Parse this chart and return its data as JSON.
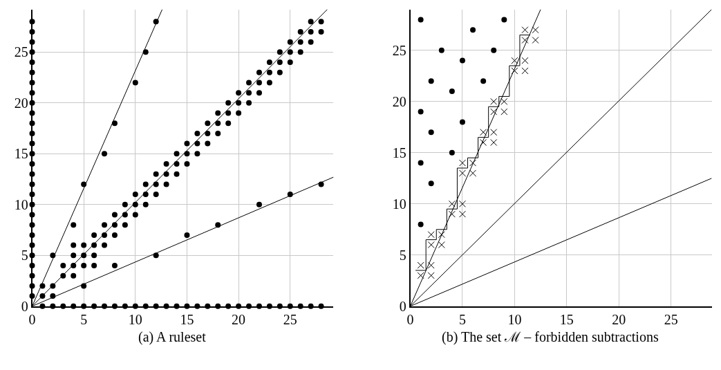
{
  "chart_data": [
    {
      "type": "scatter",
      "title": "(a) A ruleset",
      "xlim": [
        0,
        29.2
      ],
      "ylim": [
        0,
        29.2
      ],
      "xticks": [
        0,
        5,
        10,
        15,
        20,
        25
      ],
      "yticks": [
        0,
        5,
        10,
        15,
        20,
        25
      ],
      "grid": true,
      "series": [
        {
          "type": "scatter",
          "marker": "circle",
          "color": "#000000",
          "x": [
            0,
            0,
            0,
            0,
            0,
            0,
            0,
            0,
            0,
            0,
            0,
            0,
            0,
            0,
            0,
            0,
            0,
            0,
            0,
            0,
            0,
            0,
            0,
            0,
            0,
            0,
            0,
            0,
            1,
            2,
            3,
            4,
            5,
            6,
            7,
            8,
            9,
            10,
            11,
            12,
            13,
            14,
            15,
            16,
            17,
            18,
            19,
            20,
            21,
            22,
            23,
            24,
            25,
            26,
            27,
            28,
            1,
            1,
            2,
            2,
            2,
            3,
            3,
            4,
            4,
            4,
            4,
            4,
            5,
            5,
            5,
            5,
            5,
            6,
            6,
            6,
            6,
            7,
            7,
            7,
            7,
            8,
            8,
            8,
            8,
            8,
            9,
            9,
            9,
            10,
            10,
            10,
            10,
            11,
            11,
            11,
            11,
            12,
            12,
            12,
            12,
            12,
            13,
            13,
            13,
            14,
            14,
            14,
            15,
            15,
            15,
            15,
            16,
            16,
            16,
            17,
            17,
            17,
            18,
            18,
            18,
            18,
            19,
            19,
            19,
            20,
            20,
            20,
            21,
            21,
            21,
            22,
            22,
            22,
            22,
            23,
            23,
            23,
            24,
            24,
            24,
            25,
            25,
            25,
            25,
            26,
            26,
            26,
            27,
            27,
            27,
            28,
            28,
            28
          ],
          "values": [
            1,
            2,
            3,
            4,
            5,
            6,
            7,
            8,
            9,
            10,
            11,
            12,
            13,
            14,
            15,
            16,
            17,
            18,
            19,
            20,
            21,
            22,
            23,
            24,
            25,
            26,
            27,
            28,
            0,
            0,
            0,
            0,
            0,
            0,
            0,
            0,
            0,
            0,
            0,
            0,
            0,
            0,
            0,
            0,
            0,
            0,
            0,
            0,
            0,
            0,
            0,
            0,
            0,
            0,
            0,
            0,
            1,
            2,
            1,
            2,
            5,
            3,
            4,
            3,
            4,
            5,
            6,
            8,
            2,
            4,
            5,
            6,
            12,
            4,
            5,
            6,
            7,
            6,
            7,
            8,
            15,
            4,
            7,
            8,
            9,
            18,
            8,
            9,
            10,
            9,
            10,
            11,
            22,
            10,
            11,
            12,
            25,
            5,
            11,
            12,
            13,
            28,
            12,
            13,
            14,
            13,
            14,
            15,
            7,
            14,
            15,
            16,
            15,
            16,
            17,
            16,
            17,
            18,
            8,
            17,
            18,
            19,
            18,
            19,
            20,
            19,
            20,
            21,
            20,
            21,
            22,
            10,
            21,
            22,
            23,
            22,
            23,
            24,
            23,
            24,
            25,
            11,
            24,
            25,
            26,
            25,
            26,
            27,
            26,
            27,
            28,
            12,
            27,
            28
          ]
        },
        {
          "type": "line",
          "marker": "none",
          "line_style": "solid",
          "color": "#000000",
          "x": [
            0,
            12.6
          ],
          "values": [
            0,
            29.2
          ]
        },
        {
          "type": "line",
          "marker": "none",
          "line_style": "solid",
          "color": "#000000",
          "x": [
            0,
            28.6
          ],
          "values": [
            0,
            29.2
          ]
        },
        {
          "type": "line",
          "marker": "none",
          "line_style": "solid",
          "color": "#000000",
          "x": [
            0,
            29.2
          ],
          "values": [
            0,
            12.7
          ]
        }
      ]
    },
    {
      "type": "scatter",
      "title": "(b) The set ℳ – forbidden subtractions",
      "xlim": [
        0,
        28.9
      ],
      "ylim": [
        0,
        29
      ],
      "xticks": [
        0,
        5,
        10,
        15,
        20,
        25
      ],
      "yticks": [
        0,
        5,
        10,
        15,
        20,
        25
      ],
      "grid": true,
      "series": [
        {
          "type": "scatter",
          "marker": "circle",
          "color": "#000000",
          "x": [
            1,
            9,
            6,
            3,
            8,
            5,
            2,
            7,
            4,
            1,
            5,
            2,
            4,
            1,
            2,
            1
          ],
          "values": [
            28,
            28,
            27,
            25,
            25,
            24,
            22,
            22,
            21,
            19,
            18,
            17,
            15,
            14,
            12,
            8
          ]
        },
        {
          "type": "scatter",
          "marker": "cross",
          "color": "#000000",
          "x": [
            1,
            1,
            2,
            2,
            2,
            2,
            3,
            3,
            4,
            4,
            5,
            5,
            5,
            5,
            6,
            6,
            7,
            7,
            8,
            8,
            8,
            8,
            9,
            9,
            10,
            10,
            11,
            11,
            11,
            11,
            12,
            12
          ],
          "values": [
            4,
            3,
            4,
            3,
            7,
            6,
            7,
            6,
            10,
            9,
            10,
            9,
            14,
            13,
            14,
            13,
            17,
            16,
            17,
            16,
            20,
            19,
            20,
            19,
            24,
            23,
            24,
            23,
            27,
            26,
            27,
            26
          ]
        },
        {
          "type": "step",
          "marker": "none",
          "line_style": "solid",
          "color": "#000000",
          "x": [
            0.5,
            1.5,
            2.5,
            3.5,
            4.5,
            5.5,
            6.5,
            7.5,
            8.5,
            9.5,
            10.5,
            11.5
          ],
          "values": [
            3.5,
            6.5,
            7.5,
            9.5,
            13.5,
            14.5,
            16.5,
            19.5,
            20.5,
            23.5,
            26.5,
            26.5
          ]
        },
        {
          "type": "line",
          "marker": "none",
          "line_style": "solid",
          "color": "#000000",
          "x": [
            0,
            12.5
          ],
          "values": [
            0,
            29
          ]
        },
        {
          "type": "line",
          "marker": "none",
          "line_style": "solid",
          "color": "#000000",
          "x": [
            0,
            28.9
          ],
          "values": [
            0,
            29
          ]
        },
        {
          "type": "line",
          "marker": "none",
          "line_style": "solid",
          "color": "#000000",
          "x": [
            0,
            28.9
          ],
          "values": [
            0,
            12.5
          ]
        }
      ]
    }
  ]
}
